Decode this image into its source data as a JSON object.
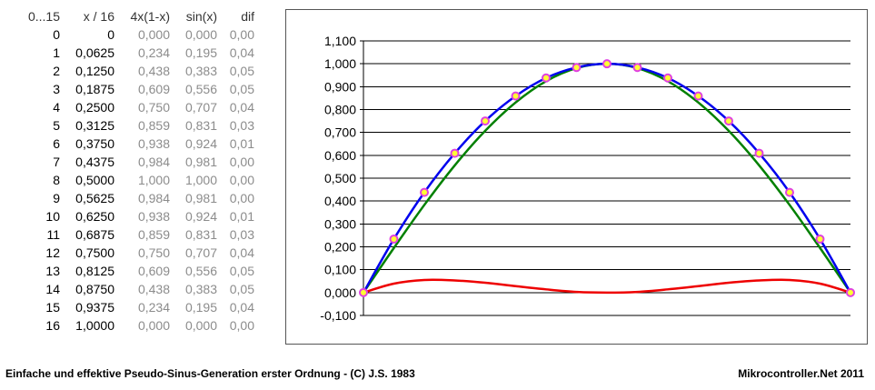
{
  "table": {
    "headers": [
      "0...15",
      "x / 16",
      "4x(1-x)",
      "sin(x)",
      "dif"
    ],
    "rows": [
      [
        "0",
        "0",
        "0,000",
        "0,000",
        "0,00"
      ],
      [
        "1",
        "0,0625",
        "0,234",
        "0,195",
        "0,04"
      ],
      [
        "2",
        "0,1250",
        "0,438",
        "0,383",
        "0,05"
      ],
      [
        "3",
        "0,1875",
        "0,609",
        "0,556",
        "0,05"
      ],
      [
        "4",
        "0,2500",
        "0,750",
        "0,707",
        "0,04"
      ],
      [
        "5",
        "0,3125",
        "0,859",
        "0,831",
        "0,03"
      ],
      [
        "6",
        "0,3750",
        "0,938",
        "0,924",
        "0,01"
      ],
      [
        "7",
        "0,4375",
        "0,984",
        "0,981",
        "0,00"
      ],
      [
        "8",
        "0,5000",
        "1,000",
        "1,000",
        "0,00"
      ],
      [
        "9",
        "0,5625",
        "0,984",
        "0,981",
        "0,00"
      ],
      [
        "10",
        "0,6250",
        "0,938",
        "0,924",
        "0,01"
      ],
      [
        "11",
        "0,6875",
        "0,859",
        "0,831",
        "0,03"
      ],
      [
        "12",
        "0,7500",
        "0,750",
        "0,707",
        "0,04"
      ],
      [
        "13",
        "0,8125",
        "0,609",
        "0,556",
        "0,05"
      ],
      [
        "14",
        "0,8750",
        "0,438",
        "0,383",
        "0,05"
      ],
      [
        "15",
        "0,9375",
        "0,234",
        "0,195",
        "0,04"
      ],
      [
        "16",
        "1,0000",
        "0,000",
        "0,000",
        "0,00"
      ]
    ]
  },
  "chart_data": {
    "type": "line",
    "title": "",
    "xlabel": "",
    "ylabel": "",
    "x": [
      0,
      1,
      2,
      3,
      4,
      5,
      6,
      7,
      8,
      9,
      10,
      11,
      12,
      13,
      14,
      15,
      16
    ],
    "series": [
      {
        "values": [
          0,
          0.234,
          0.438,
          0.609,
          0.75,
          0.859,
          0.938,
          0.984,
          1,
          0.984,
          0.938,
          0.859,
          0.75,
          0.609,
          0.438,
          0.234,
          0
        ],
        "color": "#0000ee",
        "markers": true
      },
      {
        "values": [
          0,
          0.195,
          0.383,
          0.556,
          0.707,
          0.831,
          0.924,
          0.981,
          1,
          0.981,
          0.924,
          0.831,
          0.707,
          0.556,
          0.383,
          0.195,
          0
        ],
        "color": "#008000",
        "markers": false
      },
      {
        "values": [
          0,
          0.039,
          0.055,
          0.053,
          0.043,
          0.028,
          0.014,
          0.003,
          0,
          0.003,
          0.014,
          0.028,
          0.043,
          0.053,
          0.055,
          0.039,
          0
        ],
        "color": "#ee0000",
        "markers": false
      }
    ],
    "marker_fill": "#ffff33",
    "marker_stroke": "#e040e0",
    "ylim": [
      -0.1,
      1.1
    ],
    "y_ticks": [
      "1,100",
      "1,000",
      "0,900",
      "0,800",
      "0,700",
      "0,600",
      "0,500",
      "0,400",
      "0,300",
      "0,200",
      "0,100",
      "0,000",
      "-0,100"
    ],
    "grid": true,
    "legend": "none"
  },
  "footer": {
    "left": "Einfache und effektive Pseudo-Sinus-Generation erster Ordnung - (C) J.S. 1983",
    "right": "Mikrocontroller.Net 2011"
  }
}
